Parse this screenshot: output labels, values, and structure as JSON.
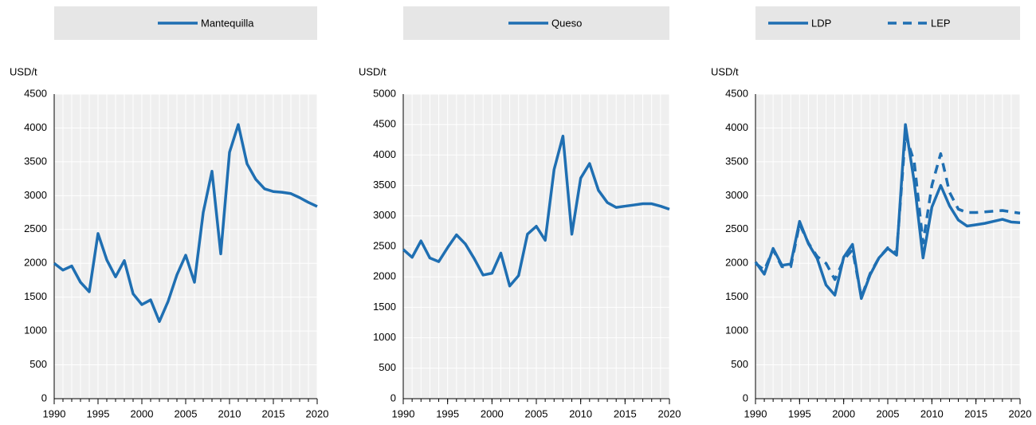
{
  "chart_data": [
    {
      "type": "line",
      "y_label": "USD/t",
      "xlim": [
        1990,
        2020
      ],
      "xticks": [
        1990,
        1995,
        2000,
        2005,
        2010,
        2015,
        2020
      ],
      "ylim": [
        0,
        4500
      ],
      "yticks": [
        0,
        500,
        1000,
        1500,
        2000,
        2500,
        3000,
        3500,
        4000,
        4500
      ],
      "grid": true,
      "x": [
        1990,
        1991,
        1992,
        1993,
        1994,
        1995,
        1996,
        1997,
        1998,
        1999,
        2000,
        2001,
        2002,
        2003,
        2004,
        2005,
        2006,
        2007,
        2008,
        2009,
        2010,
        2011,
        2012,
        2013,
        2014,
        2015,
        2016,
        2017,
        2018,
        2019,
        2020
      ],
      "series": [
        {
          "name": "Mantequilla",
          "color": "#1f6fb2",
          "line_style": "solid",
          "values": [
            2000,
            1900,
            1960,
            1720,
            1580,
            2440,
            2050,
            1800,
            2040,
            1550,
            1390,
            1460,
            1140,
            1440,
            1830,
            2120,
            1720,
            2750,
            3360,
            2140,
            3640,
            4050,
            3470,
            3240,
            3100,
            3060,
            3050,
            3030,
            2970,
            2900,
            2840
          ]
        }
      ]
    },
    {
      "type": "line",
      "y_label": "USD/t",
      "xlim": [
        1990,
        2020
      ],
      "xticks": [
        1990,
        1995,
        2000,
        2005,
        2010,
        2015,
        2020
      ],
      "ylim": [
        0,
        5000
      ],
      "yticks": [
        0,
        500,
        1000,
        1500,
        2000,
        2500,
        3000,
        3500,
        4000,
        4500,
        5000
      ],
      "grid": true,
      "x": [
        1990,
        1991,
        1992,
        1993,
        1994,
        1995,
        1996,
        1997,
        1998,
        1999,
        2000,
        2001,
        2002,
        2003,
        2004,
        2005,
        2006,
        2007,
        2008,
        2009,
        2010,
        2011,
        2012,
        2013,
        2014,
        2015,
        2016,
        2017,
        2018,
        2019,
        2020
      ],
      "series": [
        {
          "name": "Queso",
          "color": "#1f6fb2",
          "line_style": "solid",
          "values": [
            2450,
            2320,
            2590,
            2310,
            2250,
            2480,
            2690,
            2540,
            2300,
            2030,
            2060,
            2390,
            1850,
            2020,
            2700,
            2830,
            2600,
            3760,
            4310,
            2700,
            3620,
            3860,
            3420,
            3220,
            3140,
            3160,
            3180,
            3200,
            3200,
            3160,
            3110
          ]
        }
      ]
    },
    {
      "type": "line",
      "y_label": "USD/t",
      "xlim": [
        1990,
        2020
      ],
      "xticks": [
        1990,
        1995,
        2000,
        2005,
        2010,
        2015,
        2020
      ],
      "ylim": [
        0,
        4500
      ],
      "yticks": [
        0,
        500,
        1000,
        1500,
        2000,
        2500,
        3000,
        3500,
        4000,
        4500
      ],
      "grid": true,
      "x": [
        1990,
        1991,
        1992,
        1993,
        1994,
        1995,
        1996,
        1997,
        1998,
        1999,
        2000,
        2001,
        2002,
        2003,
        2004,
        2005,
        2006,
        2007,
        2008,
        2009,
        2010,
        2011,
        2012,
        2013,
        2014,
        2015,
        2016,
        2017,
        2018,
        2019,
        2020
      ],
      "series": [
        {
          "name": "LDP",
          "color": "#1f6fb2",
          "line_style": "solid",
          "values": [
            2020,
            1840,
            2220,
            1970,
            1990,
            2620,
            2290,
            2070,
            1680,
            1530,
            2090,
            2280,
            1480,
            1830,
            2080,
            2220,
            2120,
            4050,
            3200,
            2080,
            2830,
            3150,
            2850,
            2640,
            2550,
            2570,
            2590,
            2620,
            2650,
            2610,
            2600
          ]
        },
        {
          "name": "LEP",
          "color": "#1f6fb2",
          "line_style": "dashed",
          "values": [
            2000,
            1900,
            2200,
            1950,
            1950,
            2580,
            2300,
            2100,
            2000,
            1760,
            2050,
            2200,
            1500,
            1850,
            2080,
            2230,
            2150,
            3900,
            3500,
            2300,
            3150,
            3620,
            3050,
            2800,
            2750,
            2750,
            2760,
            2770,
            2780,
            2760,
            2740
          ]
        }
      ]
    }
  ]
}
